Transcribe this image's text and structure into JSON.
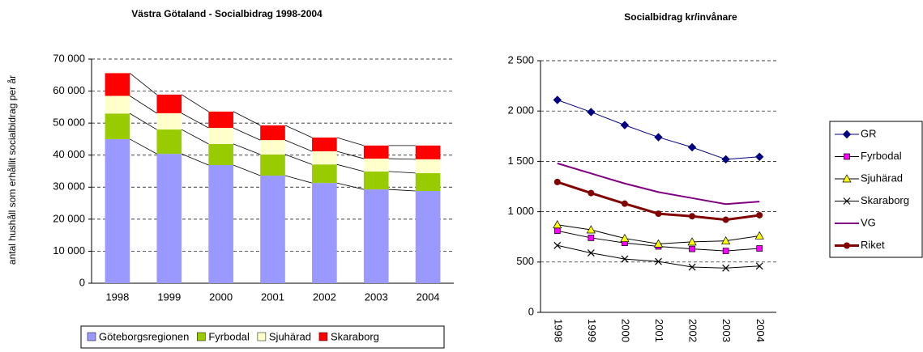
{
  "chart_data": [
    {
      "type": "bar",
      "stacked": true,
      "title": "Västra Götaland - Socialbidrag 1998-2004",
      "y_label": "antal hushåll som erhållit socialbidrag per år",
      "categories": [
        "1998",
        "1999",
        "2000",
        "2001",
        "2002",
        "2003",
        "2004"
      ],
      "series": [
        {
          "name": "Göteborgsregionen",
          "color": "#9999ff",
          "values": [
            45000,
            40400,
            36900,
            33600,
            31300,
            29300,
            28800
          ]
        },
        {
          "name": "Fyrbodal",
          "color": "#99cc00",
          "values": [
            8000,
            7600,
            6600,
            6600,
            5800,
            5600,
            5600
          ]
        },
        {
          "name": "Sjuhärad",
          "color": "#ffffcc",
          "values": [
            5500,
            5100,
            5000,
            4500,
            4100,
            4000,
            4300
          ]
        },
        {
          "name": "Skaraborg",
          "color": "#ff0000",
          "values": [
            7100,
            5800,
            5100,
            4600,
            4300,
            4100,
            4300
          ]
        }
      ],
      "ylim": [
        0,
        70000
      ],
      "yticks": [
        0,
        {
          "value": 10000,
          "label": "10 000"
        },
        {
          "value": 20000,
          "label": "20 000"
        },
        {
          "value": 30000,
          "label": "30 000"
        },
        {
          "value": 40000,
          "label": "40 000"
        },
        {
          "value": 50000,
          "label": "50 000"
        },
        {
          "value": 60000,
          "label": "60 000"
        },
        {
          "value": 70000,
          "label": "70 000"
        }
      ],
      "grid": true,
      "legend": "bottom"
    },
    {
      "type": "line",
      "title": "Socialbidrag kr/invånare",
      "categories": [
        "1998",
        "1999",
        "2000",
        "2001",
        "2002",
        "2003",
        "2004"
      ],
      "series": [
        {
          "name": "GR",
          "color": "#000080",
          "marker": "diamond",
          "marker_color": "#000080",
          "line_width": 1,
          "values": [
            2110,
            1990,
            1860,
            1740,
            1640,
            1520,
            1545
          ]
        },
        {
          "name": "Fyrbodal",
          "color": "#000000",
          "marker": "square",
          "marker_color": "#ff00ff",
          "line_width": 1,
          "values": [
            810,
            740,
            690,
            655,
            630,
            610,
            635
          ]
        },
        {
          "name": "Sjuhärad",
          "color": "#000000",
          "marker": "triangle",
          "marker_color": "#ffff00",
          "line_width": 1,
          "values": [
            870,
            820,
            735,
            680,
            700,
            710,
            760
          ]
        },
        {
          "name": "Skaraborg",
          "color": "#000000",
          "marker": "x",
          "marker_color": "#000000",
          "line_width": 1,
          "values": [
            665,
            590,
            530,
            505,
            450,
            440,
            460
          ]
        },
        {
          "name": "VG",
          "color": "#800080",
          "marker": "none",
          "marker_color": "#800080",
          "line_width": 2,
          "values": [
            1480,
            1380,
            1280,
            1195,
            1135,
            1075,
            1100
          ]
        },
        {
          "name": "Riket",
          "color": "#800000",
          "marker": "circle",
          "marker_color": "#800000",
          "line_width": 3,
          "values": [
            1295,
            1185,
            1080,
            980,
            955,
            920,
            965
          ]
        }
      ],
      "ylim": [
        0,
        2500
      ],
      "yticks": [
        0,
        500,
        {
          "value": 1000,
          "label": "1 000"
        },
        {
          "value": 1500,
          "label": "1 500"
        },
        {
          "value": 2000,
          "label": "2 000"
        },
        {
          "value": 2500,
          "label": "2 500"
        }
      ],
      "grid": true,
      "legend": "right"
    }
  ]
}
